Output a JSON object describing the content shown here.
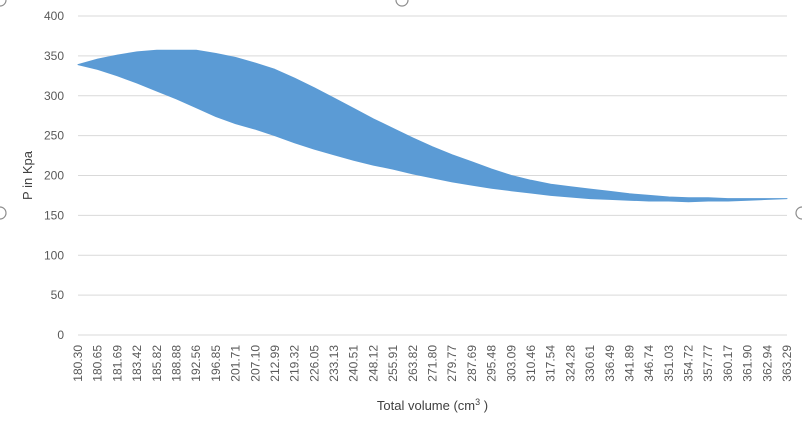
{
  "chart_data": {
    "type": "area",
    "title": "",
    "xlabel": "Total volume (cm",
    "xlabel_sup": "3",
    "xlabel_close": " )",
    "ylabel": "P in Kpa",
    "ylim": [
      0,
      400
    ],
    "yticks": [
      0,
      50,
      100,
      150,
      200,
      250,
      300,
      350,
      400
    ],
    "ytick_labels": [
      "0",
      "50",
      "100",
      "150",
      "200",
      "250",
      "300",
      "350",
      "400"
    ],
    "categories": [
      "180.30",
      "180.65",
      "181.69",
      "183.42",
      "185.82",
      "188.88",
      "192.56",
      "196.85",
      "201.71",
      "207.10",
      "212.99",
      "219.32",
      "226.05",
      "233.13",
      "240.51",
      "248.12",
      "255.91",
      "263.82",
      "271.80",
      "279.77",
      "287.69",
      "295.48",
      "303.09",
      "310.46",
      "317.54",
      "324.28",
      "330.61",
      "336.49",
      "341.89",
      "346.74",
      "351.03",
      "354.72",
      "357.77",
      "360.17",
      "361.90",
      "362.94",
      "363.29"
    ],
    "series_color": "#5b9bd5",
    "grid": true,
    "legend": "none",
    "series": [
      {
        "upper": [
          339,
          346,
          351,
          355,
          357,
          357,
          357,
          353,
          348,
          341,
          333,
          322,
          310,
          297,
          284,
          271,
          259,
          247,
          236,
          226,
          217,
          208,
          200,
          194,
          189,
          186,
          183,
          180,
          177,
          175,
          173,
          172,
          172,
          171,
          171,
          171,
          171
        ],
        "lower": [
          339,
          333,
          325,
          316,
          306,
          296,
          285,
          274,
          265,
          258,
          250,
          241,
          233,
          226,
          219,
          213,
          208,
          202,
          197,
          192,
          188,
          184,
          181,
          178,
          175,
          173,
          171,
          170,
          169,
          168,
          168,
          167,
          168,
          168,
          169,
          170,
          171
        ]
      }
    ]
  }
}
